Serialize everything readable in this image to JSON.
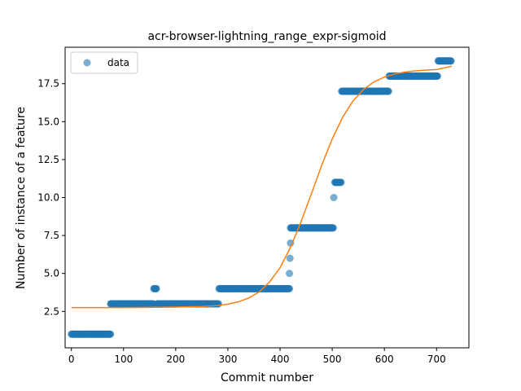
{
  "chart_data": {
    "type": "scatter",
    "title": "acr-browser-lightning_range_expr-sigmoid",
    "xlabel": "Commit number",
    "ylabel": "Number of instance of a feature",
    "xlim": [
      -12,
      762
    ],
    "ylim": [
      0.1,
      19.9
    ],
    "xticks": [
      0,
      100,
      200,
      300,
      400,
      500,
      600,
      700
    ],
    "yticks": [
      2.5,
      5.0,
      7.5,
      10.0,
      12.5,
      15.0,
      17.5
    ],
    "xtick_labels": [
      "0",
      "100",
      "200",
      "300",
      "400",
      "500",
      "600",
      "700"
    ],
    "ytick_labels": [
      "2.5",
      "5.0",
      "7.5",
      "10.0",
      "12.5",
      "15.0",
      "17.5"
    ],
    "grid": false,
    "legend": {
      "location": "upper left",
      "entries": [
        "data"
      ]
    },
    "series": [
      {
        "name": "data",
        "kind": "scatter",
        "color": "#1f77b4",
        "alpha": 0.6,
        "runs": [
          {
            "x_start": 0,
            "x_end": 75,
            "y": 1
          },
          {
            "x_start": 75,
            "x_end": 157,
            "y": 3
          },
          {
            "x_start": 158,
            "x_end": 163,
            "y": 4
          },
          {
            "x_start": 164,
            "x_end": 282,
            "y": 3
          },
          {
            "x_start": 283,
            "x_end": 418,
            "y": 4
          },
          {
            "x_start": 420,
            "x_end": 502,
            "y": 8
          },
          {
            "x_start": 505,
            "x_end": 517,
            "y": 11
          },
          {
            "x_start": 518,
            "x_end": 608,
            "y": 17
          },
          {
            "x_start": 609,
            "x_end": 702,
            "y": 18
          },
          {
            "x_start": 703,
            "x_end": 728,
            "y": 19
          }
        ],
        "points": [
          {
            "x": 418,
            "y": 5
          },
          {
            "x": 419,
            "y": 6
          },
          {
            "x": 420,
            "y": 7
          },
          {
            "x": 503,
            "y": 10
          }
        ]
      },
      {
        "name": "",
        "kind": "line",
        "color": "#ff7f0e",
        "x": [
          0,
          50,
          100,
          150,
          200,
          250,
          280,
          300,
          320,
          340,
          360,
          380,
          400,
          420,
          440,
          460,
          480,
          500,
          520,
          540,
          560,
          580,
          600,
          620,
          640,
          660,
          680,
          700,
          729
        ],
        "y": [
          2.75,
          2.75,
          2.75,
          2.76,
          2.78,
          2.82,
          2.88,
          2.98,
          3.13,
          3.38,
          3.78,
          4.44,
          5.38,
          6.72,
          8.38,
          10.24,
          12.14,
          13.86,
          15.29,
          16.37,
          17.12,
          17.62,
          17.94,
          18.14,
          18.27,
          18.35,
          18.4,
          18.43,
          18.65
        ]
      }
    ]
  }
}
